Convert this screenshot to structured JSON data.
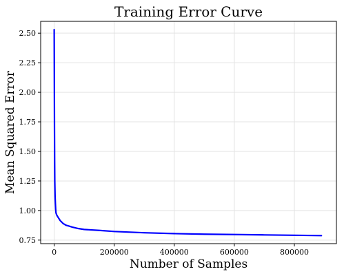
{
  "chart_data": {
    "type": "line",
    "title": "Training Error Curve",
    "xlabel": "Number of Samples",
    "ylabel": "Mean Squared Error",
    "xlim": [
      -45000,
      940000
    ],
    "ylim": [
      0.72,
      2.6
    ],
    "x_ticks": [
      {
        "value": 0,
        "label": "0"
      },
      {
        "value": 200000,
        "label": "200000"
      },
      {
        "value": 400000,
        "label": "400000"
      },
      {
        "value": 600000,
        "label": "600000"
      },
      {
        "value": 800000,
        "label": "800000"
      }
    ],
    "y_ticks": [
      {
        "value": 0.75,
        "label": "0.75"
      },
      {
        "value": 1.0,
        "label": "1.00"
      },
      {
        "value": 1.25,
        "label": "1.25"
      },
      {
        "value": 1.5,
        "label": "1.50"
      },
      {
        "value": 1.75,
        "label": "1.75"
      },
      {
        "value": 2.0,
        "label": "2.00"
      },
      {
        "value": 2.25,
        "label": "2.25"
      },
      {
        "value": 2.5,
        "label": "2.50"
      }
    ],
    "grid": true,
    "series": [
      {
        "color": "#0000ff",
        "x": [
          0,
          500,
          1000,
          1500,
          2000,
          3000,
          4000,
          5000,
          6000,
          8000,
          10000,
          15000,
          20000,
          30000,
          40000,
          50000,
          60000,
          80000,
          100000,
          150000,
          200000,
          300000,
          400000,
          500000,
          600000,
          700000,
          800000,
          890000
        ],
        "y": [
          2.53,
          2.1,
          1.7,
          1.42,
          1.25,
          1.12,
          1.06,
          1.01,
          0.98,
          0.965,
          0.955,
          0.935,
          0.915,
          0.89,
          0.875,
          0.868,
          0.86,
          0.848,
          0.84,
          0.832,
          0.823,
          0.812,
          0.805,
          0.8,
          0.797,
          0.794,
          0.791,
          0.788
        ]
      }
    ]
  }
}
